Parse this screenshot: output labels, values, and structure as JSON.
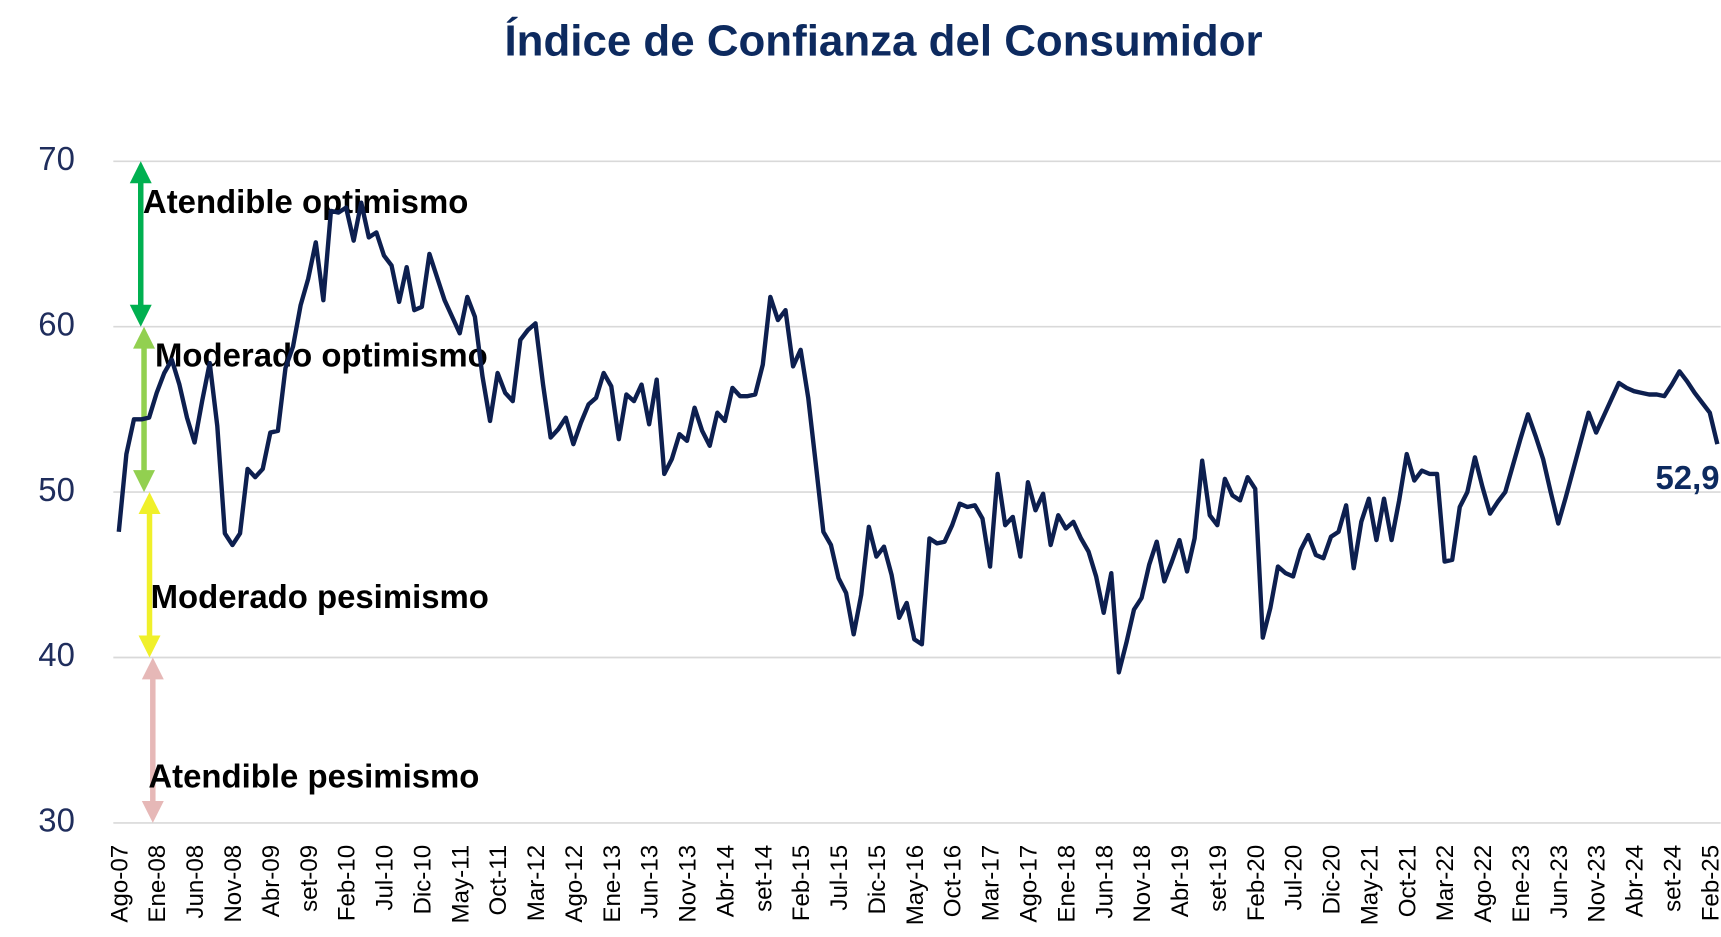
{
  "chart_data": {
    "type": "line",
    "title": "Índice de Confianza del Consumidor",
    "categories": [
      "Ago-07",
      null,
      null,
      null,
      null,
      "Ene-08",
      null,
      null,
      null,
      null,
      "Jun-08",
      null,
      null,
      null,
      null,
      "Nov-08",
      null,
      null,
      null,
      null,
      "Abr-09",
      null,
      null,
      null,
      null,
      "set-09",
      null,
      null,
      null,
      null,
      "Feb-10",
      null,
      null,
      null,
      null,
      "Jul-10",
      null,
      null,
      null,
      null,
      "Dic-10",
      null,
      null,
      null,
      null,
      "May-11",
      null,
      null,
      null,
      null,
      "Oct-11",
      null,
      null,
      null,
      null,
      "Mar-12",
      null,
      null,
      null,
      null,
      "Ago-12",
      null,
      null,
      null,
      null,
      "Ene-13",
      null,
      null,
      null,
      null,
      "Jun-13",
      null,
      null,
      null,
      null,
      "Nov-13",
      null,
      null,
      null,
      null,
      "Abr-14",
      null,
      null,
      null,
      null,
      "set-14",
      null,
      null,
      null,
      null,
      "Feb-15",
      null,
      null,
      null,
      null,
      "Jul-15",
      null,
      null,
      null,
      null,
      "Dic-15",
      null,
      null,
      null,
      null,
      "May-16",
      null,
      null,
      null,
      null,
      "Oct-16",
      null,
      null,
      null,
      null,
      "Mar-17",
      null,
      null,
      null,
      null,
      "Ago-17",
      null,
      null,
      null,
      null,
      "Ene-18",
      null,
      null,
      null,
      null,
      "Jun-18",
      null,
      null,
      null,
      null,
      "Nov-18",
      null,
      null,
      null,
      null,
      "Abr-19",
      null,
      null,
      null,
      null,
      "set-19",
      null,
      null,
      null,
      null,
      "Feb-20",
      null,
      null,
      null,
      null,
      "Jul-20",
      null,
      null,
      null,
      null,
      "Dic-20",
      null,
      null,
      null,
      null,
      "May-21",
      null,
      null,
      null,
      null,
      "Oct-21",
      null,
      null,
      null,
      null,
      "Mar-22",
      null,
      null,
      null,
      null,
      "Ago-22",
      null,
      null,
      null,
      null,
      "Ene-23",
      null,
      null,
      null,
      null,
      "Jun-23",
      null,
      null,
      null,
      null,
      "Nov-23",
      null,
      null,
      null,
      null,
      "Abr-24",
      null,
      null,
      null,
      null,
      "set-24",
      null,
      null,
      null,
      null,
      "Feb-25",
      null
    ],
    "values": [
      47.6,
      52.3,
      54.4,
      54.4,
      54.5,
      56.0,
      57.2,
      58.0,
      56.5,
      54.5,
      53.0,
      55.5,
      57.8,
      54.0,
      47.5,
      46.8,
      47.5,
      51.4,
      50.9,
      51.4,
      53.6,
      53.7,
      57.5,
      58.8,
      61.3,
      62.9,
      65.1,
      61.6,
      67.0,
      66.9,
      67.2,
      65.2,
      67.5,
      65.4,
      65.7,
      64.3,
      63.7,
      61.5,
      63.6,
      61.0,
      61.2,
      64.4,
      63.0,
      61.6,
      60.6,
      59.6,
      61.8,
      60.6,
      57.0,
      54.3,
      57.2,
      56.0,
      55.5,
      59.2,
      59.8,
      60.2,
      56.5,
      53.3,
      53.8,
      54.5,
      52.9,
      54.2,
      55.3,
      55.7,
      57.2,
      56.4,
      53.2,
      55.9,
      55.5,
      56.5,
      54.1,
      56.8,
      51.1,
      52.0,
      53.5,
      53.1,
      55.1,
      53.7,
      52.8,
      54.8,
      54.3,
      56.3,
      55.8,
      55.8,
      55.9,
      57.7,
      61.8,
      60.4,
      61.0,
      57.6,
      58.6,
      55.7,
      51.7,
      47.6,
      46.8,
      44.8,
      43.9,
      41.4,
      43.8,
      47.9,
      46.1,
      46.7,
      45.0,
      42.4,
      43.3,
      41.1,
      40.8,
      47.2,
      46.9,
      47.0,
      48.0,
      49.3,
      49.1,
      49.2,
      48.4,
      45.5,
      51.1,
      48.0,
      48.5,
      46.1,
      50.6,
      48.9,
      49.9,
      46.8,
      48.6,
      47.8,
      48.2,
      47.2,
      46.4,
      44.9,
      42.7,
      45.1,
      39.1,
      40.9,
      42.9,
      43.6,
      45.6,
      47.0,
      44.6,
      45.8,
      47.1,
      45.2,
      47.2,
      51.9,
      48.6,
      48.0,
      50.8,
      49.8,
      49.5,
      50.9,
      50.2,
      41.2,
      43.0,
      45.5,
      45.1,
      44.9,
      46.5,
      47.4,
      46.2,
      46.0,
      47.3,
      47.6,
      49.2,
      45.4,
      48.2,
      49.6,
      47.1,
      49.6,
      47.1,
      49.5,
      52.3,
      50.7,
      51.3,
      51.1,
      51.1,
      45.8,
      45.9,
      49.1,
      50.0,
      52.1,
      50.3,
      48.7,
      49.4,
      50.0,
      51.6,
      53.2,
      54.7,
      53.4,
      52.0,
      50.0,
      48.1,
      49.7,
      51.4,
      53.1,
      54.8,
      53.6,
      54.6,
      55.6,
      56.6,
      56.3,
      56.1,
      56.0,
      55.9,
      55.9,
      55.8,
      56.5,
      57.3,
      56.7,
      56.0,
      55.4,
      54.8,
      52.9
    ],
    "value_labels": [
      null,
      null,
      null,
      null,
      null,
      null,
      null,
      null,
      null,
      null,
      null,
      null,
      null,
      null,
      null,
      null,
      null,
      null,
      null,
      null,
      null,
      null,
      null,
      null,
      null,
      null,
      null,
      null,
      null,
      null,
      null,
      null,
      null,
      null,
      null,
      null,
      null,
      null,
      null,
      null,
      null,
      null,
      null,
      null,
      null,
      null,
      null,
      null,
      null,
      null,
      null,
      null,
      null,
      null,
      null,
      null,
      null,
      null,
      null,
      null,
      null,
      null,
      null,
      null,
      null,
      null,
      null,
      null,
      null,
      null,
      null,
      null,
      null,
      null,
      null,
      null,
      null,
      null,
      null,
      null,
      null,
      null,
      null,
      null,
      null,
      null,
      null,
      null,
      null,
      null,
      null,
      null,
      null,
      null,
      null,
      null,
      null,
      null,
      null,
      null,
      null,
      null,
      null,
      null,
      null,
      null,
      null,
      null,
      null,
      null,
      null,
      null,
      null,
      null,
      null,
      null,
      null,
      null,
      null,
      null,
      null,
      null,
      null,
      null,
      null,
      null,
      null,
      null,
      null,
      null,
      null,
      null,
      null,
      null,
      null,
      null,
      null,
      null,
      null,
      null,
      null,
      null,
      null,
      null,
      null,
      null,
      null,
      null,
      null,
      null,
      null,
      null,
      null,
      null,
      null,
      null,
      null,
      null,
      null,
      null,
      null,
      null,
      null,
      null,
      null,
      null,
      null,
      null,
      null,
      null,
      null,
      null,
      null,
      null,
      null,
      null,
      null,
      null,
      null,
      null,
      null,
      null,
      null,
      null,
      null,
      null,
      null,
      null,
      null,
      null,
      null,
      null,
      null,
      null,
      null,
      null,
      null,
      null,
      null,
      null,
      null,
      null,
      null,
      null,
      null,
      null,
      null,
      null,
      null,
      null,
      null,
      "52,9"
    ],
    "color": "#0d1f4f",
    "ylim": [
      30,
      70
    ],
    "yticks": [
      30,
      40,
      50,
      60,
      70
    ],
    "grid": true,
    "zones": [
      {
        "label": "Atendible optimismo",
        "from": 60,
        "to": 70,
        "color": "#00b050"
      },
      {
        "label": "Moderado optimismo",
        "from": 50,
        "to": 60,
        "color": "#92d050"
      },
      {
        "label": "Moderado pesimismo",
        "from": 40,
        "to": 50,
        "color": "#f0f02a"
      },
      {
        "label": "Atendible pesimismo",
        "from": 30,
        "to": 40,
        "color": "#e6b8b7"
      }
    ]
  }
}
